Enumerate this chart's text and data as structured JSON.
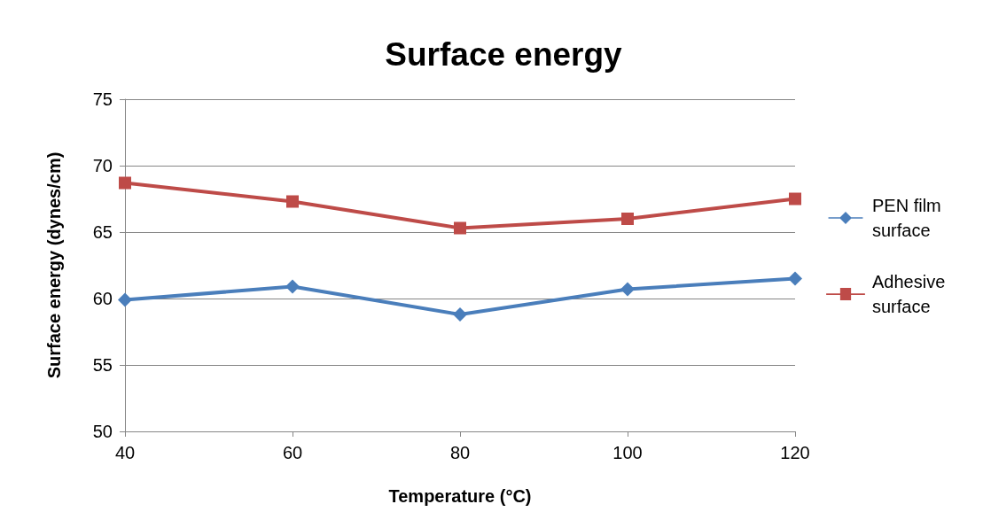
{
  "chart_data": {
    "type": "line",
    "title": "Surface energy",
    "xlabel": "Temperature (°C)",
    "ylabel": "Surface energy (dynes/cm)",
    "x": [
      40,
      60,
      80,
      100,
      120
    ],
    "series": [
      {
        "name": "PEN film surface",
        "color": "#4a7ebb",
        "marker": "diamond",
        "values": [
          59.9,
          60.9,
          58.8,
          60.7,
          61.5
        ]
      },
      {
        "name": "Adhesive surface",
        "color": "#be4b48",
        "marker": "square",
        "values": [
          68.7,
          67.3,
          65.3,
          66.0,
          67.5
        ]
      }
    ],
    "xlim": [
      40,
      120
    ],
    "xticks": [
      40,
      60,
      80,
      100,
      120
    ],
    "ylim": [
      50,
      75
    ],
    "yticks": [
      50,
      55,
      60,
      65,
      70,
      75
    ],
    "grid": "y",
    "legend": "right",
    "line_style": "solid"
  }
}
